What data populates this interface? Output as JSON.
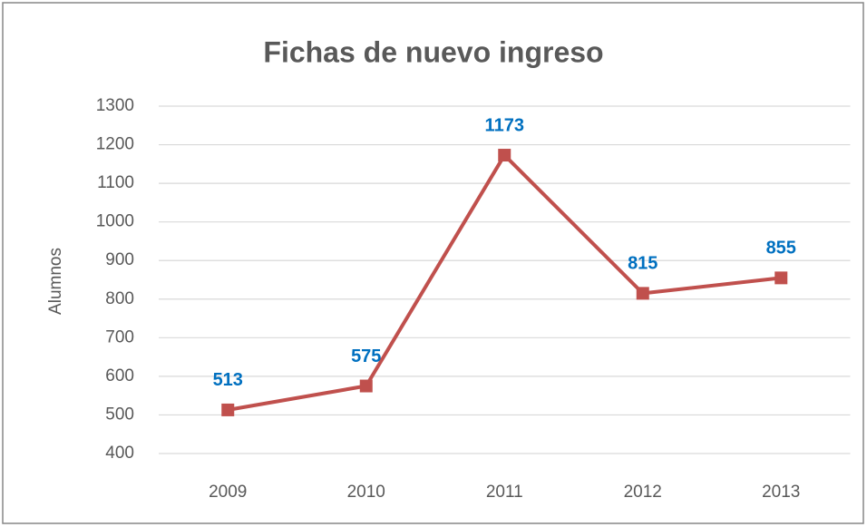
{
  "chart_data": {
    "type": "line",
    "title": "Fichas de nuevo ingreso",
    "y_label": "Alumnos",
    "categories": [
      "2009",
      "2010",
      "2011",
      "2012",
      "2013"
    ],
    "series": [
      {
        "name": "Alumnos",
        "color": "#c0504d",
        "values": [
          513,
          575,
          1173,
          815,
          855
        ]
      }
    ],
    "label_color": "#0070c0",
    "ylim": [
      400,
      1300
    ],
    "yticks": [
      400,
      500,
      600,
      700,
      800,
      900,
      1000,
      1100,
      1200,
      1300
    ],
    "grid": true
  }
}
